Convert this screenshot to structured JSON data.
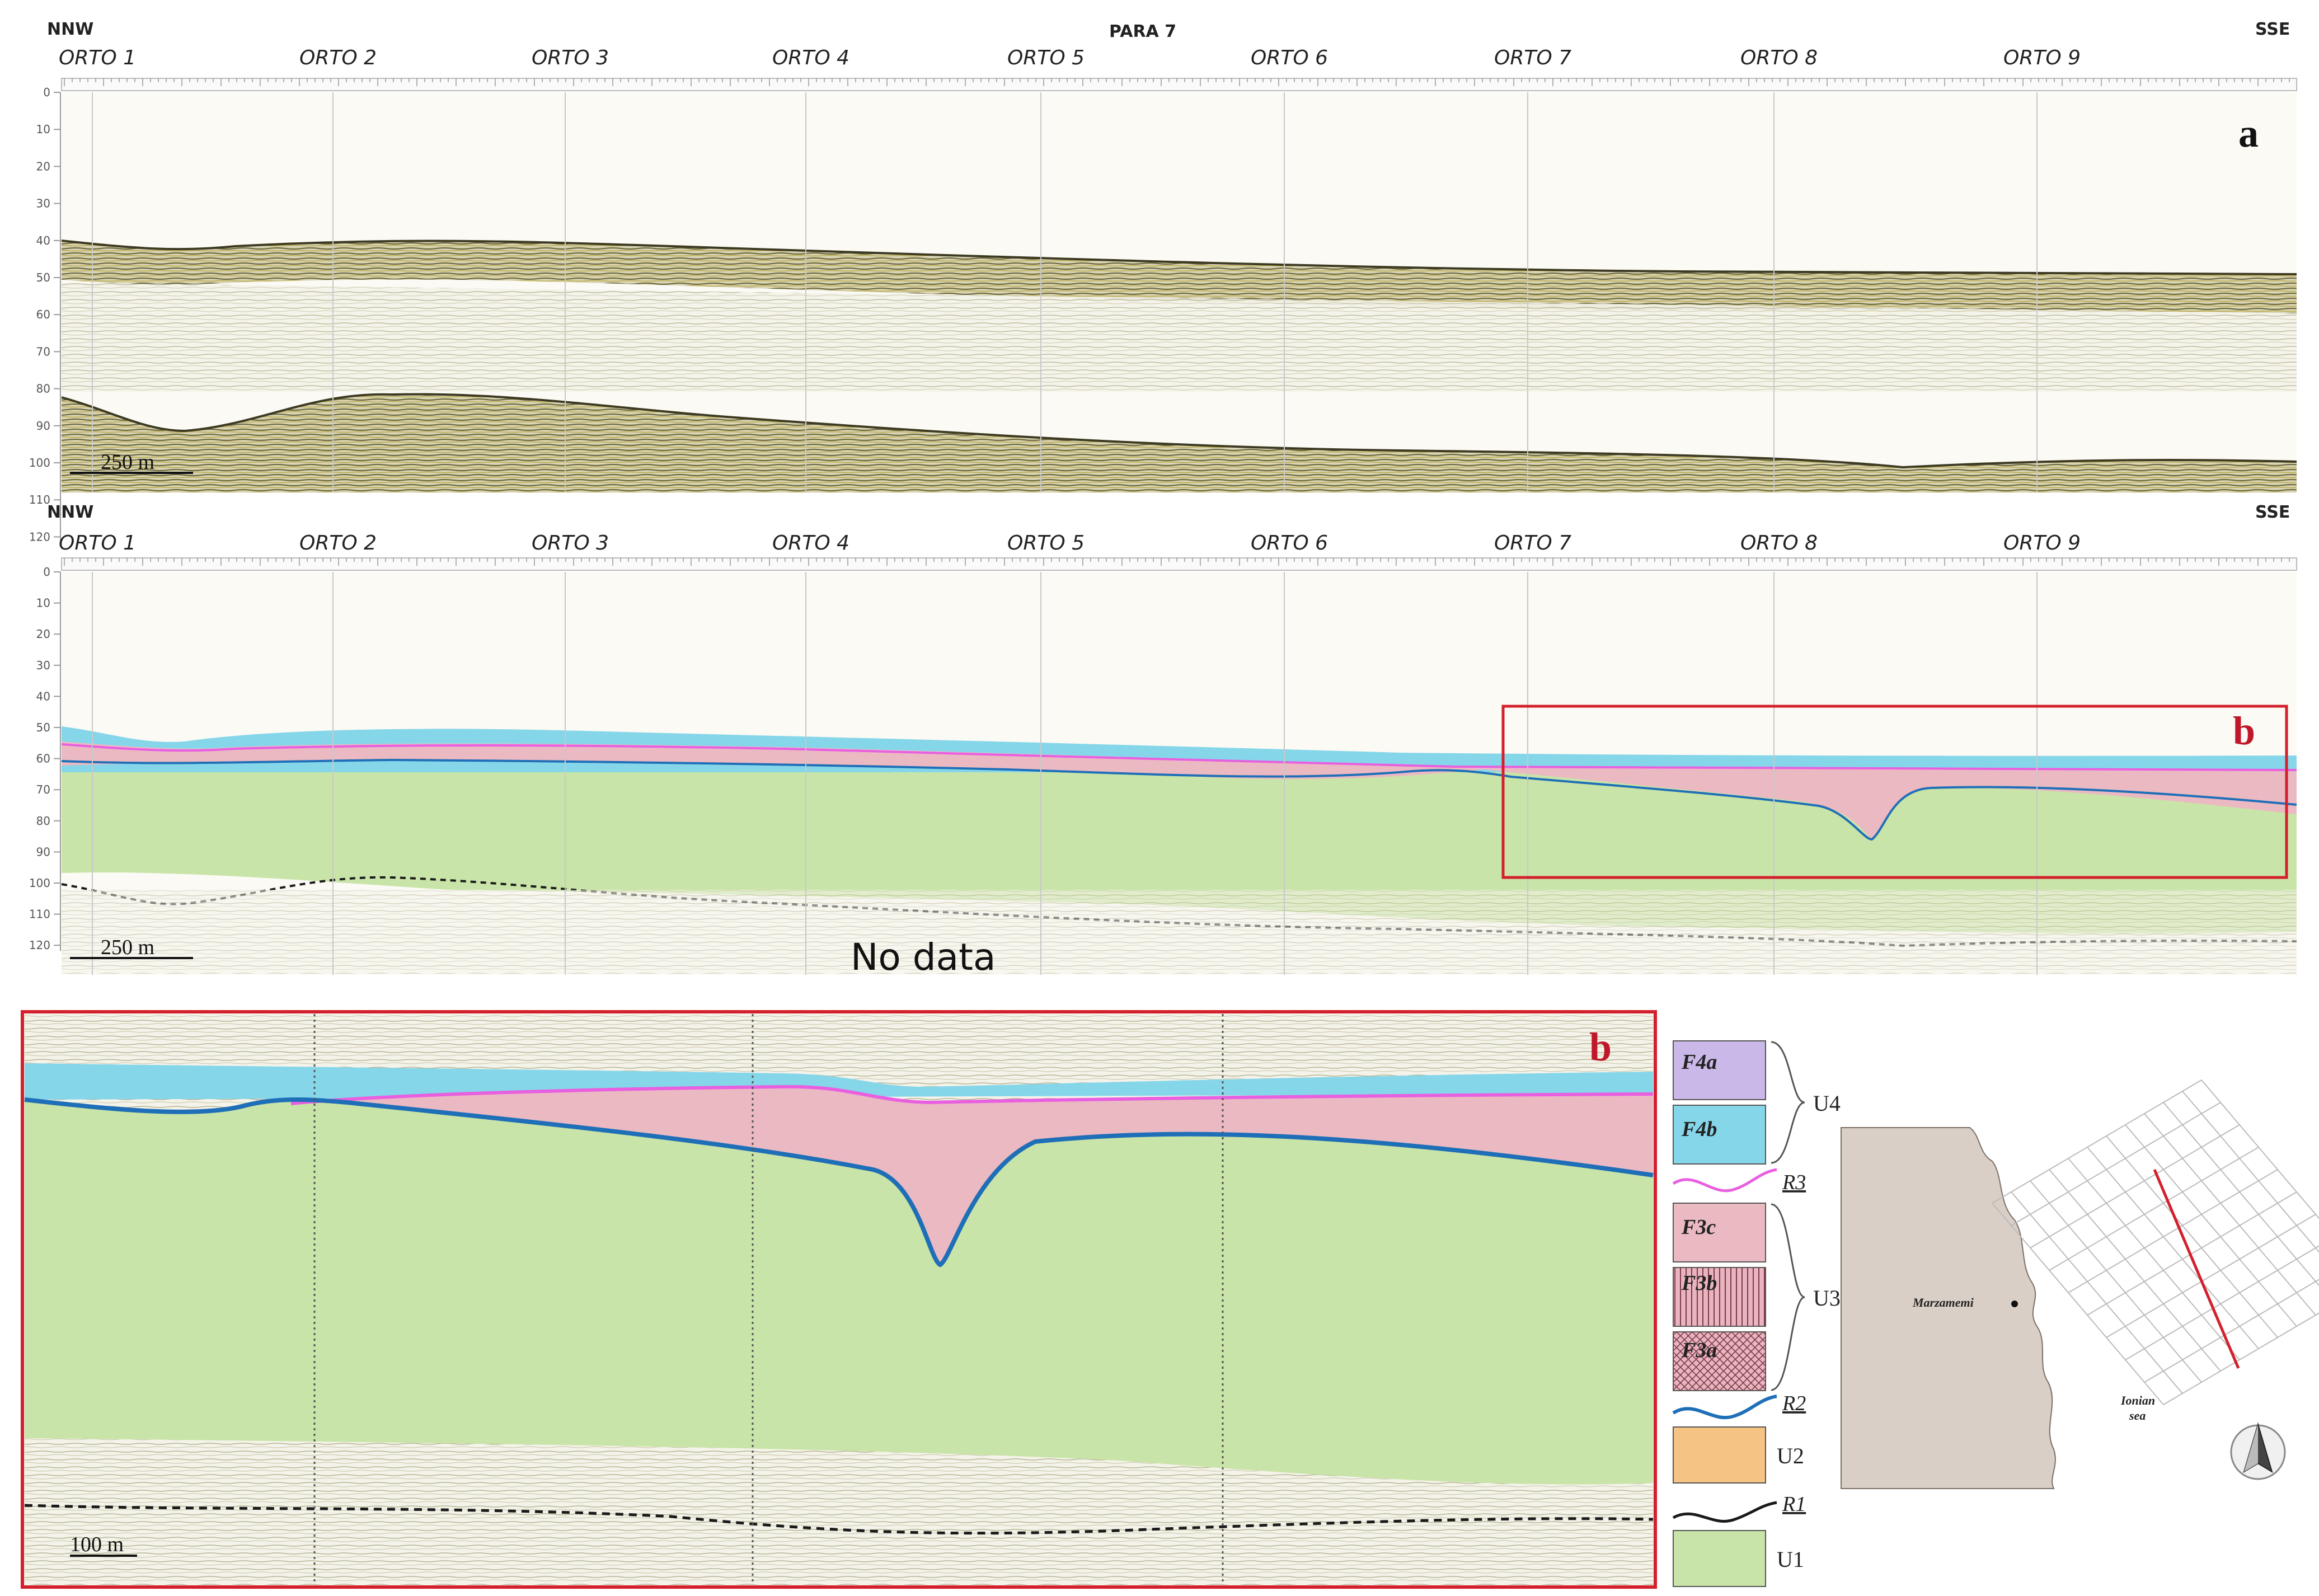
{
  "profile": {
    "title": "PARA 7",
    "direction_left": "NNW",
    "direction_right": "SSE",
    "crossings": [
      "ORTO 1",
      "ORTO 2",
      "ORTO 3",
      "ORTO 4",
      "ORTO 5",
      "ORTO 6",
      "ORTO 7",
      "ORTO 8",
      "ORTO 9"
    ],
    "depth_ticks": [
      "0",
      "10",
      "20",
      "30",
      "40",
      "50",
      "60",
      "70",
      "80",
      "90",
      "100",
      "110",
      "120"
    ]
  },
  "panel_a": {
    "label": "a",
    "scale_bar": "250 m"
  },
  "panel_interp": {
    "label": "b",
    "scale_bar": "250 m",
    "no_data": "No data"
  },
  "panel_b": {
    "label": "b",
    "scale_bar": "100 m"
  },
  "legend": {
    "F4a": "F4a",
    "F4b": "F4b",
    "U4": "U4",
    "R3": "R3",
    "F3c": "F3c",
    "F3b": "F3b",
    "F3a": "F3a",
    "U3": "U3",
    "R2": "R2",
    "U2": "U2",
    "R1": "R1",
    "U1": "U1"
  },
  "map": {
    "town": "Marzamemi",
    "sea_line1": "Ionian",
    "sea_line2": "sea"
  },
  "colors": {
    "F4a": "#c9b8e8",
    "F4b": "#86d6ea",
    "F3c": "#ebb9c2",
    "U2": "#f5c384",
    "U1": "#c9e4a8",
    "R3": "#e85fe0",
    "R2": "#1f6fb8",
    "R1": "#1a1a1a",
    "highlight": "#d4202c",
    "land": "#d9cfc6"
  }
}
